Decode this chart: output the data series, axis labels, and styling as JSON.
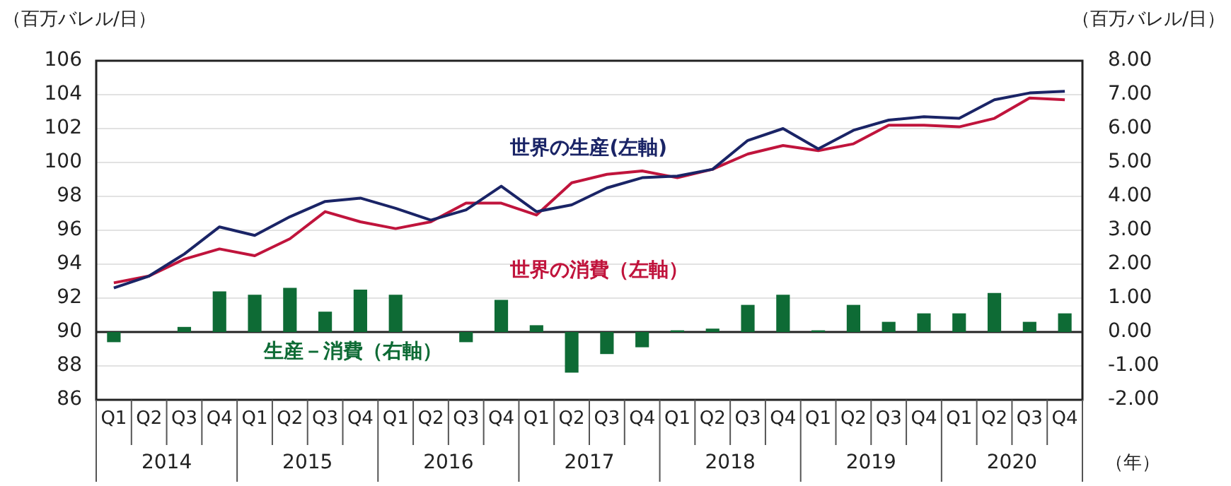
{
  "chart_data": {
    "type": "bar",
    "ylabel": "（百万バレル/日）",
    "y2label": "（百万バレル/日）",
    "xlabel": "（年）",
    "categories": [
      "Q1",
      "Q2",
      "Q3",
      "Q4",
      "Q1",
      "Q2",
      "Q3",
      "Q4",
      "Q1",
      "Q2",
      "Q3",
      "Q4",
      "Q1",
      "Q2",
      "Q3",
      "Q4",
      "Q1",
      "Q2",
      "Q3",
      "Q4",
      "Q1",
      "Q2",
      "Q3",
      "Q4",
      "Q1",
      "Q2",
      "Q3",
      "Q4"
    ],
    "annotations": [
      "2014",
      "2015",
      "2016",
      "2017",
      "2018",
      "2019",
      "2020"
    ],
    "series": [
      {
        "name": "生産－消費（右軸）",
        "axis": "y2",
        "color": "#0e6b35",
        "values": [
          -0.3,
          0,
          0.15,
          1.2,
          1.1,
          1.3,
          0.6,
          1.25,
          1.1,
          0,
          -0.3,
          0.95,
          0.2,
          -1.2,
          -0.65,
          -0.45,
          0.05,
          0.1,
          0.8,
          1.1,
          0.05,
          0.8,
          0.3,
          0.55,
          0.55,
          1.15,
          0.3,
          0.55
        ]
      },
      {
        "name": "世界の生産(左軸)",
        "type": "line",
        "axis": "y",
        "color": "#1a2466",
        "values": [
          92.6,
          93.3,
          94.6,
          96.2,
          95.7,
          96.8,
          97.7,
          97.9,
          97.3,
          96.6,
          97.2,
          98.6,
          97.1,
          97.5,
          98.5,
          99.1,
          99.2,
          99.6,
          101.3,
          102.0,
          100.8,
          101.9,
          102.5,
          102.7,
          102.6,
          103.7,
          104.1,
          104.2
        ]
      },
      {
        "name": "世界の消費（左軸）",
        "type": "line",
        "axis": "y",
        "color": "#c0143c",
        "values": [
          92.9,
          93.3,
          94.3,
          94.9,
          94.5,
          95.5,
          97.1,
          96.5,
          96.1,
          96.5,
          97.6,
          97.6,
          96.9,
          98.8,
          99.3,
          99.5,
          99.1,
          99.6,
          100.5,
          101.0,
          100.7,
          101.1,
          102.2,
          102.2,
          102.1,
          102.6,
          103.8,
          103.7
        ]
      }
    ],
    "ylim": [
      86,
      106
    ],
    "yticks": [
      86,
      88,
      90,
      92,
      94,
      96,
      98,
      100,
      102,
      104,
      106
    ],
    "y2lim": [
      -2,
      8
    ],
    "y2ticks": [
      {
        "value": -2,
        "label": "-2.00"
      },
      {
        "value": -1,
        "label": "-1.00"
      },
      {
        "value": 0,
        "label": "0.00"
      },
      {
        "value": 1,
        "label": "1.00"
      },
      {
        "value": 2,
        "label": "2.00"
      },
      {
        "value": 3,
        "label": "3.00"
      },
      {
        "value": 4,
        "label": "4.00"
      },
      {
        "value": 5,
        "label": "5.00"
      },
      {
        "value": 6,
        "label": "6.00"
      },
      {
        "value": 7,
        "label": "7.00"
      },
      {
        "value": 8,
        "label": "8.00"
      }
    ],
    "ref_lines": [
      {
        "axis": "y2",
        "value": 0,
        "color": "#222222"
      }
    ],
    "grid": "y",
    "legend": false,
    "marker": "none",
    "line_style": "solid"
  }
}
